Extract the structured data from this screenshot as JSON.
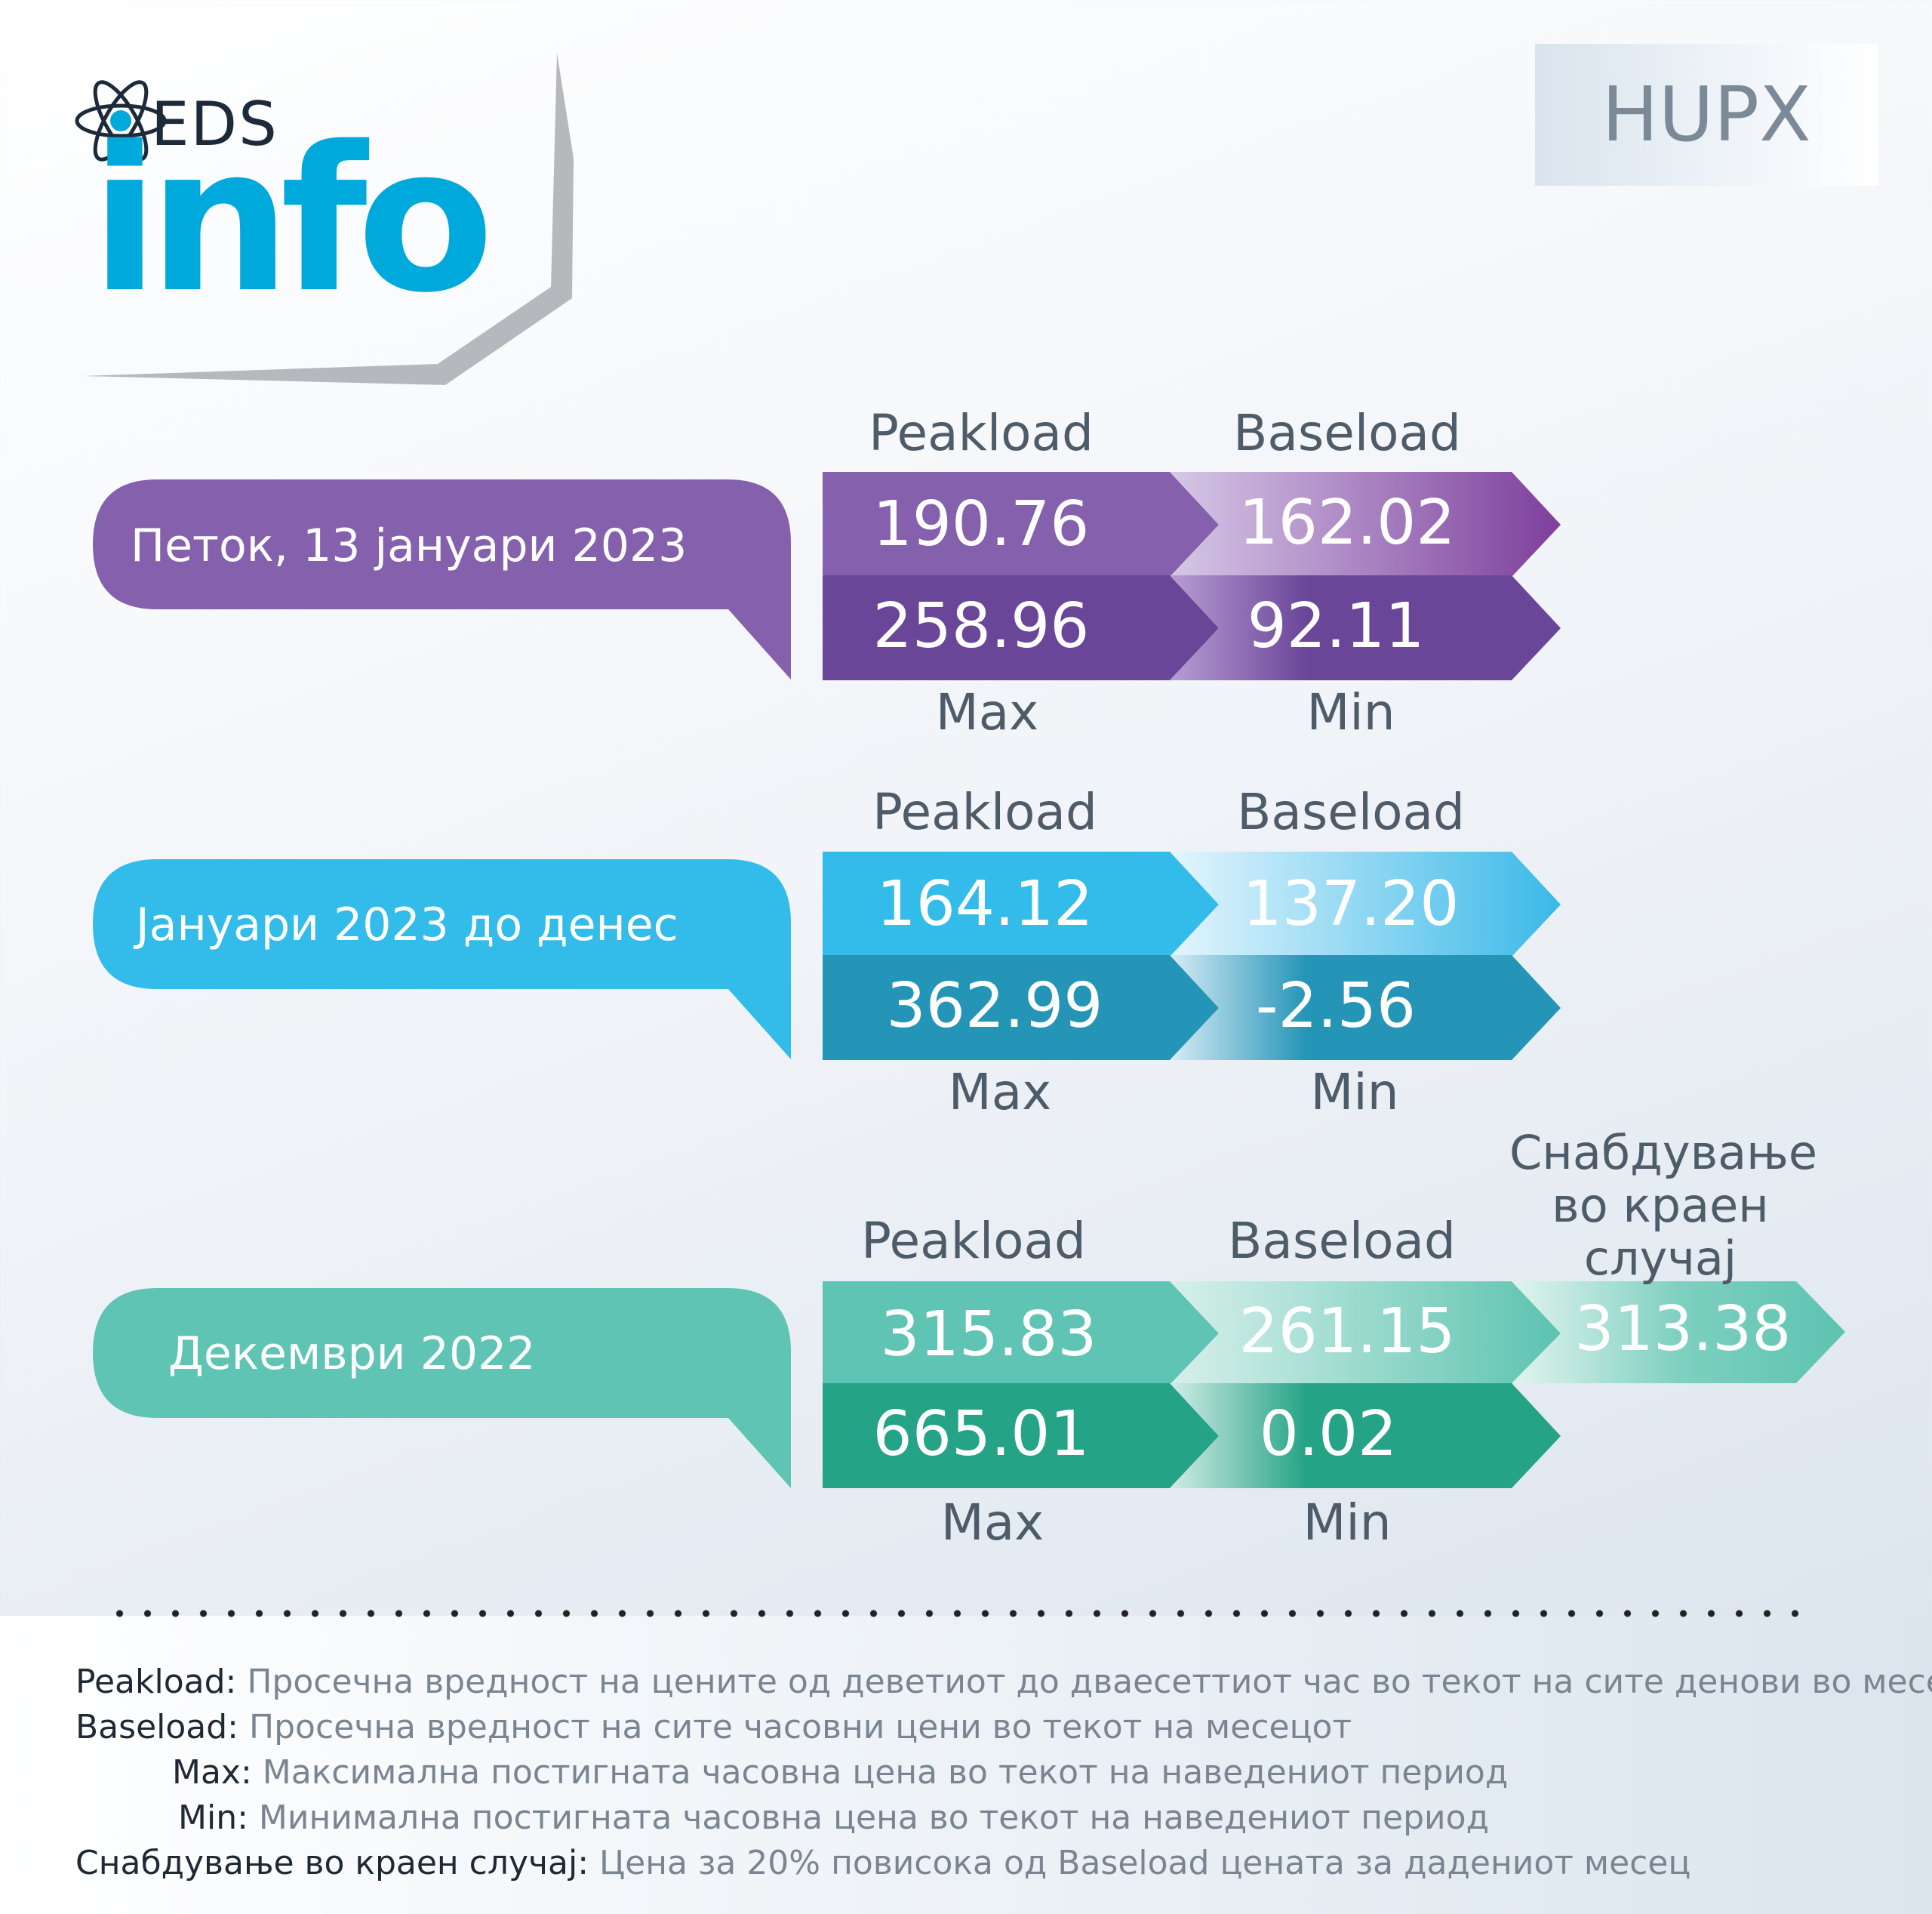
{
  "logo": {
    "eds": "EDS",
    "info": "info"
  },
  "badge": "HUPX",
  "colors": {
    "purple": "#7e56a8",
    "blue": "#33bce9",
    "teal": "#5fc4b3",
    "info_blue": "#00a9dc"
  },
  "sections": [
    {
      "period": "Петок, 13 јануари 2023",
      "peak_label": "Peakload",
      "base_label": "Baseload",
      "peak": "190.76",
      "base": "162.02",
      "max": "258.96",
      "min": "92.11",
      "max_label": "Max",
      "min_label": "Min"
    },
    {
      "period": "Јануари 2023 до денес",
      "peak_label": "Peakload",
      "base_label": "Baseload",
      "peak": "164.12",
      "base": "137.20",
      "max": "362.99",
      "min": "-2.56",
      "max_label": "Max",
      "min_label": "Min"
    },
    {
      "period": "Декември 2022",
      "peak_label": "Peakload",
      "base_label": "Baseload",
      "peak": "315.83",
      "base": "261.15",
      "max": "665.01",
      "min": "0.02",
      "max_label": "Max",
      "min_label": "Min",
      "last_resort_label": [
        "Снабдување",
        "во краен",
        "случај"
      ],
      "last_resort": "313.38"
    }
  ],
  "definitions": [
    {
      "term": "Peakload:",
      "text": " Просечна вредност на цените од деветиот до дваесеттиот час во текот на сите денови во месецот"
    },
    {
      "term": "Baseload:",
      "text": " Просечна вредност на сите часовни цени во текот на месецот"
    },
    {
      "term": "Max:",
      "text": " Максимална постигната часовна цена во текот на наведениот период"
    },
    {
      "term": "Min:",
      "text": " Минимална постигната часовна цена во текот на наведениот период"
    },
    {
      "term": "Снабдување во краен случај:",
      "text": " Цена за 20% повисока од Baseload цената за дадениот месец"
    }
  ]
}
